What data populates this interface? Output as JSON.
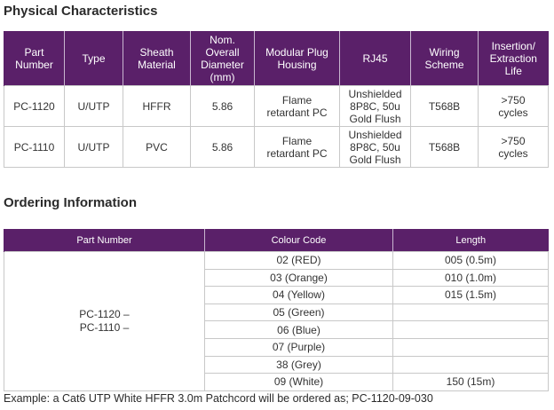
{
  "physical": {
    "title": "Physical Characteristics",
    "headers": [
      [
        "Part",
        "Number"
      ],
      [
        "Type"
      ],
      [
        "Sheath",
        "Material"
      ],
      [
        "Nom.",
        "Overall",
        "Diameter",
        "(mm)"
      ],
      [
        "Modular Plug",
        "Housing"
      ],
      [
        "RJ45"
      ],
      [
        "Wiring",
        "Scheme"
      ],
      [
        "Insertion/",
        "Extraction",
        "Life"
      ]
    ],
    "rows": [
      [
        [
          "PC-1120"
        ],
        [
          "U/UTP"
        ],
        [
          "HFFR"
        ],
        [
          "5.86"
        ],
        [
          "Flame",
          "retardant PC"
        ],
        [
          "Unshielded",
          "8P8C, 50u",
          "Gold Flush"
        ],
        [
          "T568B"
        ],
        [
          ">750",
          "cycles"
        ]
      ],
      [
        [
          "PC-1110"
        ],
        [
          "U/UTP"
        ],
        [
          "PVC"
        ],
        [
          "5.86"
        ],
        [
          "Flame",
          "retardant PC"
        ],
        [
          "Unshielded",
          "8P8C, 50u",
          "Gold Flush"
        ],
        [
          "T568B"
        ],
        [
          ">750",
          "cycles"
        ]
      ]
    ]
  },
  "ordering": {
    "title": "Ordering Information",
    "headers": [
      "Part Number",
      "Colour Code",
      "Length"
    ],
    "part_numbers": [
      "PC-1120 –",
      "PC-1110 –"
    ],
    "colour_codes": [
      "02 (RED)",
      "03 (Orange)",
      "04 (Yellow)",
      "05 (Green)",
      "06 (Blue)",
      "07 (Purple)",
      "38 (Grey)",
      "09 (White)"
    ],
    "lengths": [
      "005 (0.5m)",
      "010 (1.0m)",
      "015 (1.5m)",
      "",
      "",
      "",
      "",
      "150 (15m)"
    ]
  },
  "footnote": "Example: a Cat6 UTP White HFFR 3.0m Patchcord will be ordered as; PC-1120-09-030",
  "colors": {
    "header_bg": "#5a2069",
    "header_text": "#ffffff",
    "border": "#c8c8c8"
  }
}
